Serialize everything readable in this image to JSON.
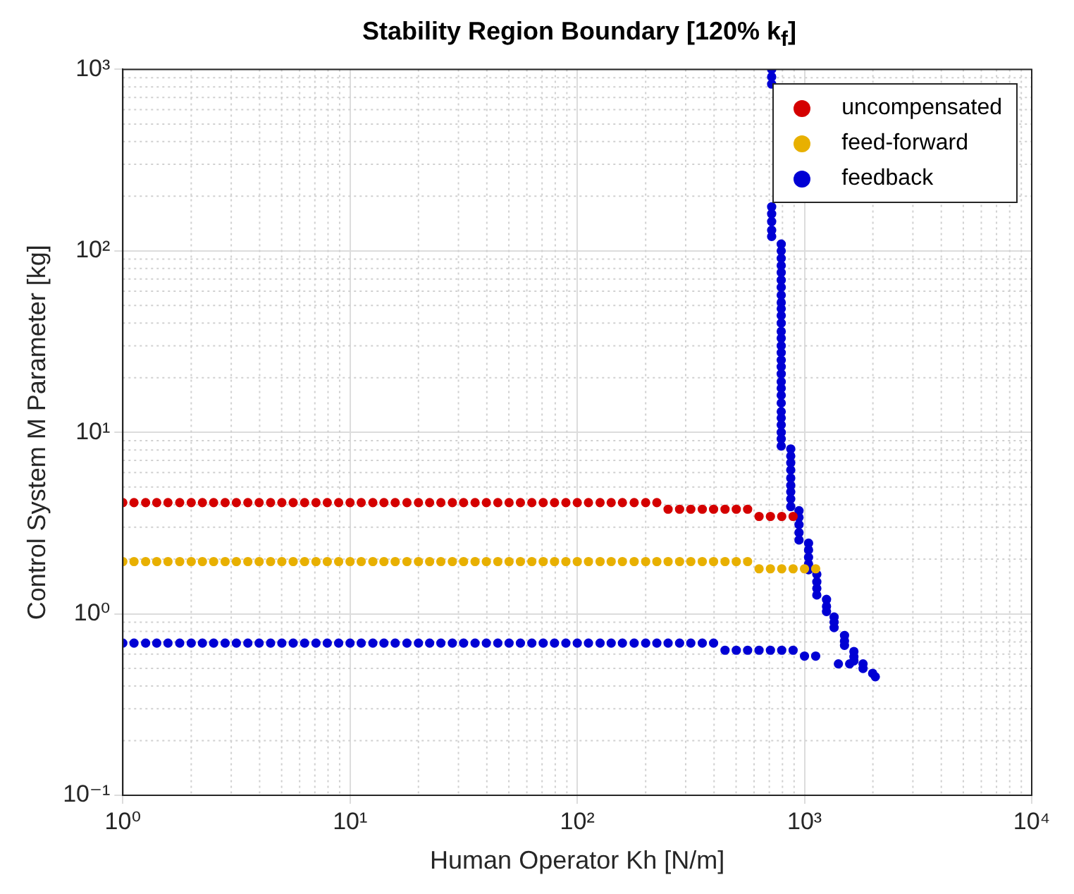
{
  "chart_data": {
    "type": "scatter",
    "title": "Stability Region Boundary [120% k$_{f}$]",
    "xlabel": "Human Operator Kh [N/m]",
    "ylabel": "Control System M Parameter [kg]",
    "log": "xy",
    "grid": true,
    "legend": "top right",
    "marker": "circle",
    "xlim": [
      1,
      10000
    ],
    "ylim": [
      0.1,
      1000
    ],
    "xticks": [
      {
        "value": 1,
        "label": "10⁰"
      },
      {
        "value": 10,
        "label": "10¹"
      },
      {
        "value": 100,
        "label": "10²"
      },
      {
        "value": 1000,
        "label": "10³"
      },
      {
        "value": 10000,
        "label": "10⁴"
      }
    ],
    "yticks": [
      {
        "value": 0.1,
        "label": "10⁻¹"
      },
      {
        "value": 1,
        "label": "10⁰"
      },
      {
        "value": 10,
        "label": "10¹"
      },
      {
        "value": 100,
        "label": "10²"
      },
      {
        "value": 1000,
        "label": "10³"
      }
    ],
    "series": [
      {
        "name": "uncompensated",
        "color": "#d40000",
        "x": [
          1,
          1.12,
          1.26,
          1.41,
          1.58,
          1.78,
          2,
          2.24,
          2.51,
          2.82,
          3.16,
          3.55,
          3.98,
          4.47,
          5.01,
          5.62,
          6.31,
          7.08,
          7.94,
          8.91,
          10,
          11.2,
          12.6,
          14.1,
          15.8,
          17.8,
          20,
          22.4,
          25.1,
          28.2,
          31.6,
          35.5,
          39.8,
          44.7,
          50.1,
          56.2,
          63.1,
          70.8,
          79.4,
          89.1,
          100,
          112,
          126,
          141,
          158,
          178,
          200,
          224,
          251,
          282,
          316,
          355,
          398,
          447,
          501,
          562,
          631,
          708,
          794,
          891
        ],
        "values": [
          4.1,
          4.1,
          4.1,
          4.1,
          4.1,
          4.1,
          4.1,
          4.1,
          4.1,
          4.1,
          4.1,
          4.1,
          4.1,
          4.1,
          4.1,
          4.1,
          4.1,
          4.1,
          4.1,
          4.1,
          4.1,
          4.1,
          4.1,
          4.1,
          4.1,
          4.1,
          4.1,
          4.1,
          4.1,
          4.1,
          4.1,
          4.1,
          4.1,
          4.1,
          4.1,
          4.1,
          4.1,
          4.1,
          4.1,
          4.1,
          4.1,
          4.1,
          4.1,
          4.1,
          4.1,
          4.1,
          4.1,
          4.1,
          3.77,
          3.77,
          3.77,
          3.77,
          3.77,
          3.77,
          3.77,
          3.77,
          3.44,
          3.44,
          3.44,
          3.44
        ]
      },
      {
        "name": "feed-forward",
        "color": "#e8b000",
        "x": [
          1,
          1.12,
          1.26,
          1.41,
          1.58,
          1.78,
          2,
          2.24,
          2.51,
          2.82,
          3.16,
          3.55,
          3.98,
          4.47,
          5.01,
          5.62,
          6.31,
          7.08,
          7.94,
          8.91,
          10,
          11.2,
          12.6,
          14.1,
          15.8,
          17.8,
          20,
          22.4,
          25.1,
          28.2,
          31.6,
          35.5,
          39.8,
          44.7,
          50.1,
          56.2,
          63.1,
          70.8,
          79.4,
          89.1,
          100,
          112,
          126,
          141,
          158,
          178,
          200,
          224,
          251,
          282,
          316,
          355,
          398,
          447,
          501,
          562,
          631,
          708,
          794,
          891,
          1000,
          1120
        ],
        "values": [
          1.94,
          1.94,
          1.94,
          1.94,
          1.94,
          1.94,
          1.94,
          1.94,
          1.94,
          1.94,
          1.94,
          1.94,
          1.94,
          1.94,
          1.94,
          1.94,
          1.94,
          1.94,
          1.94,
          1.94,
          1.94,
          1.94,
          1.94,
          1.94,
          1.94,
          1.94,
          1.94,
          1.94,
          1.94,
          1.94,
          1.94,
          1.94,
          1.94,
          1.94,
          1.94,
          1.94,
          1.94,
          1.94,
          1.94,
          1.94,
          1.94,
          1.94,
          1.94,
          1.94,
          1.94,
          1.94,
          1.94,
          1.94,
          1.94,
          1.94,
          1.94,
          1.94,
          1.94,
          1.94,
          1.94,
          1.94,
          1.77,
          1.77,
          1.77,
          1.77,
          1.77,
          1.77
        ]
      },
      {
        "name": "feedback",
        "color": "#0000d4",
        "x": [
          1,
          1.12,
          1.26,
          1.41,
          1.58,
          1.78,
          2,
          2.24,
          2.51,
          2.82,
          3.16,
          3.55,
          3.98,
          4.47,
          5.01,
          5.62,
          6.31,
          7.08,
          7.94,
          8.91,
          10,
          11.2,
          12.6,
          14.1,
          15.8,
          17.8,
          20,
          22.4,
          25.1,
          28.2,
          31.6,
          35.5,
          39.8,
          44.7,
          50.1,
          56.2,
          63.1,
          70.8,
          79.4,
          89.1,
          100,
          112,
          126,
          141,
          158,
          178,
          200,
          224,
          251,
          282,
          316,
          355,
          398,
          447,
          501,
          562,
          631,
          708,
          794,
          891,
          1000,
          1120,
          1410,
          1580,
          717,
          717,
          717,
          717,
          717,
          717,
          717,
          717,
          790,
          790,
          790,
          790,
          790,
          790,
          790,
          790,
          790,
          790,
          790,
          790,
          790,
          790,
          790,
          790,
          790,
          790,
          790,
          790,
          790,
          790,
          790,
          790,
          790,
          790,
          790,
          790,
          790,
          870,
          870,
          870,
          870,
          870,
          870,
          870,
          870,
          870,
          946,
          946,
          946,
          946,
          946,
          1042,
          1042,
          1042,
          1042,
          1042,
          1133,
          1133,
          1133,
          1133,
          1250,
          1250,
          1250,
          1350,
          1350,
          1350,
          1500,
          1500,
          1500,
          1650,
          1650,
          1650,
          1810,
          1810,
          1995,
          2050
        ],
        "values": [
          0.69,
          0.69,
          0.69,
          0.69,
          0.69,
          0.69,
          0.69,
          0.69,
          0.69,
          0.69,
          0.69,
          0.69,
          0.69,
          0.69,
          0.69,
          0.69,
          0.69,
          0.69,
          0.69,
          0.69,
          0.69,
          0.69,
          0.69,
          0.69,
          0.69,
          0.69,
          0.69,
          0.69,
          0.69,
          0.69,
          0.69,
          0.69,
          0.69,
          0.69,
          0.69,
          0.69,
          0.69,
          0.69,
          0.69,
          0.69,
          0.69,
          0.69,
          0.69,
          0.69,
          0.69,
          0.69,
          0.69,
          0.69,
          0.69,
          0.69,
          0.69,
          0.69,
          0.69,
          0.63,
          0.63,
          0.63,
          0.63,
          0.63,
          0.63,
          0.63,
          0.585,
          0.585,
          0.53,
          0.53,
          1000,
          910,
          830,
          175,
          160,
          145,
          130,
          120,
          109,
          100,
          91,
          83,
          76,
          69,
          63,
          57,
          52,
          48,
          44,
          40,
          36,
          33,
          30,
          27.5,
          25,
          23,
          21,
          19,
          17.5,
          16,
          14.5,
          13,
          12,
          11,
          10,
          9.2,
          8.4,
          8.1,
          7.4,
          6.8,
          6.2,
          5.6,
          5.1,
          4.7,
          4.3,
          3.9,
          3.7,
          3.4,
          3.1,
          2.8,
          2.55,
          2.45,
          2.25,
          2.05,
          1.88,
          1.75,
          1.65,
          1.5,
          1.38,
          1.27,
          1.2,
          1.1,
          1.03,
          0.96,
          0.9,
          0.84,
          0.76,
          0.71,
          0.67,
          0.62,
          0.58,
          0.55,
          0.53,
          0.5,
          0.47,
          0.45
        ]
      }
    ]
  }
}
